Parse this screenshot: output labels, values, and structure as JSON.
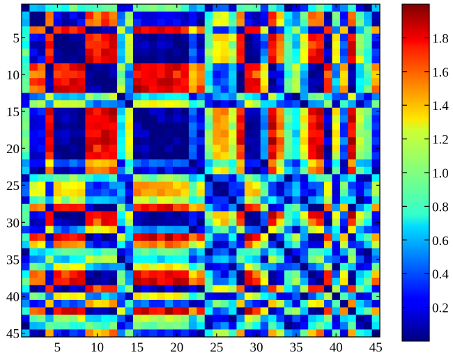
{
  "chart_data": {
    "type": "heatmap",
    "title": "",
    "xlabel": "",
    "ylabel": "",
    "n_rows": 45,
    "n_cols": 45,
    "x_range": [
      1,
      45
    ],
    "y_range": [
      1,
      45
    ],
    "y_axis_direction": "top-to-bottom",
    "x_ticks": [
      5,
      10,
      15,
      20,
      25,
      30,
      35,
      40,
      45
    ],
    "y_ticks": [
      5,
      10,
      15,
      20,
      25,
      30,
      35,
      40,
      45
    ],
    "x_tick_labels": [
      "5",
      "10",
      "15",
      "20",
      "25",
      "30",
      "35",
      "40",
      "45"
    ],
    "y_tick_labels": [
      "5",
      "10",
      "15",
      "20",
      "25",
      "30",
      "35",
      "40",
      "45"
    ],
    "colorbar": {
      "colormap": "jet",
      "min": 0,
      "max": 2,
      "ticks": [
        0.2,
        0.4,
        0.6,
        0.8,
        1.0,
        1.2,
        1.4,
        1.6,
        1.8
      ],
      "tick_labels": [
        "0.2",
        "0.4",
        "0.6",
        "0.8",
        "1.0",
        "1.2",
        "1.4",
        "1.6",
        "1.8"
      ],
      "placement": "right"
    },
    "grid": false,
    "row_profile": [
      1.0,
      0.3,
      0.3,
      1.85,
      0.1,
      0.15,
      0.1,
      0.1,
      1.9,
      1.8,
      1.9,
      1.9,
      0.8,
      1.3,
      0.05,
      0.05,
      0.1,
      0.1,
      0.05,
      0.1,
      0.1,
      0.5,
      0.3,
      1.1,
      1.45,
      1.5,
      1.2,
      1.8,
      0.1,
      0.2,
      0.6,
      1.9,
      1.6,
      1.0,
      0.8,
      1.3,
      1.8,
      1.9,
      0.2,
      1.3,
      0.5,
      1.9,
      1.2,
      1.0,
      0.4
    ]
  }
}
